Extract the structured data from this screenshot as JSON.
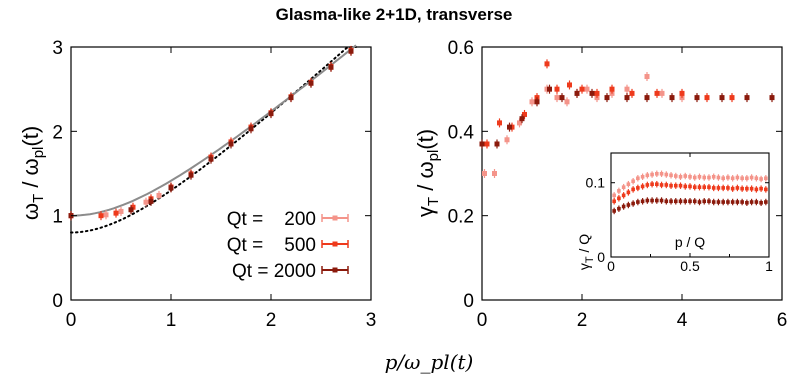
{
  "title": "Glasma-like 2+1D, transverse",
  "shared_xlabel": "p/ω_pl(t)",
  "colors": {
    "qt200": "#f4948a",
    "qt500": "#ee3a1c",
    "qt2000": "#8b1a0c",
    "theory": "#8c8c8c",
    "dotted": "#000000"
  },
  "chart_data": [
    {
      "name": "left",
      "type": "scatter",
      "ylabel_main": "ω",
      "ylabel_sub": "T",
      "ylabel_rest": " / ω",
      "ylabel_sub2": "pl",
      "ylabel_tail": "(t)",
      "xlim": [
        0,
        3
      ],
      "ylim": [
        0,
        3
      ],
      "xticks": [
        "0",
        "1",
        "2",
        "3"
      ],
      "yticks": [
        "0",
        "1",
        "2",
        "3"
      ],
      "legend": {
        "position": "bottom-right",
        "labels": [
          "Qt =    200",
          "Qt =    500",
          "Qt = 2000"
        ]
      },
      "curves": [
        {
          "kind": "solid-gray",
          "desc": "sqrt(1+x^2)"
        },
        {
          "kind": "dotted-black",
          "desc": "0.8 at x=0"
        }
      ],
      "series": [
        {
          "key": "qt200",
          "x": [
            0,
            0.35,
            0.5,
            0.75,
            0.88,
            1.0,
            1.2,
            1.4,
            1.6,
            1.8,
            2.0,
            2.2,
            2.4,
            2.6,
            2.8
          ],
          "y": [
            1.0,
            1.01,
            1.05,
            1.16,
            1.24,
            1.33,
            1.5,
            1.7,
            1.88,
            2.05,
            2.22,
            2.4,
            2.58,
            2.76,
            2.95
          ]
        },
        {
          "key": "qt500",
          "x": [
            0,
            0.3,
            0.45,
            0.62,
            0.8,
            1.0,
            1.2,
            1.4,
            1.6,
            1.8,
            2.0,
            2.2,
            2.4,
            2.6,
            2.8
          ],
          "y": [
            1.0,
            1.0,
            1.03,
            1.1,
            1.2,
            1.34,
            1.49,
            1.69,
            1.87,
            2.05,
            2.22,
            2.41,
            2.58,
            2.77,
            2.96
          ]
        },
        {
          "key": "qt2000",
          "x": [
            0,
            0.6,
            0.8,
            1.0,
            1.2,
            1.4,
            1.6,
            1.8,
            2.0,
            2.2,
            2.4,
            2.6,
            2.8
          ],
          "y": [
            1.0,
            1.07,
            1.17,
            1.33,
            1.48,
            1.67,
            1.85,
            2.03,
            2.21,
            2.4,
            2.57,
            2.76,
            2.95
          ]
        }
      ]
    },
    {
      "name": "right",
      "type": "scatter",
      "ylabel_main": "γ",
      "ylabel_sub": "T",
      "ylabel_rest": " / ω",
      "ylabel_sub2": "pl",
      "ylabel_tail": "(t)",
      "xlim": [
        0,
        6
      ],
      "ylim": [
        0,
        0.6
      ],
      "xticks": [
        "0",
        "2",
        "4",
        "6"
      ],
      "yticks": [
        "0",
        "0.2",
        "0.4",
        "0.6"
      ],
      "series": [
        {
          "key": "qt200",
          "x": [
            0.05,
            0.25,
            0.5,
            0.75,
            1.0,
            1.3,
            1.5,
            1.7,
            1.9,
            2.1,
            2.3,
            2.6,
            2.9,
            3.3,
            3.6,
            4.0
          ],
          "y": [
            0.3,
            0.3,
            0.38,
            0.42,
            0.47,
            0.5,
            0.48,
            0.47,
            0.49,
            0.5,
            0.48,
            0.49,
            0.5,
            0.53,
            0.49,
            0.48
          ]
        },
        {
          "key": "qt500",
          "x": [
            0.1,
            0.35,
            0.6,
            0.85,
            1.1,
            1.3,
            1.5,
            1.75,
            2.0,
            2.3,
            2.6,
            3.0,
            3.5,
            4.0,
            4.5,
            5.0
          ],
          "y": [
            0.37,
            0.42,
            0.41,
            0.44,
            0.48,
            0.56,
            0.5,
            0.51,
            0.5,
            0.49,
            0.5,
            0.49,
            0.49,
            0.49,
            0.48,
            0.48
          ]
        },
        {
          "key": "qt2000",
          "x": [
            0.0,
            0.3,
            0.55,
            0.8,
            1.1,
            1.35,
            1.6,
            1.9,
            2.2,
            2.5,
            2.9,
            3.3,
            3.8,
            4.3,
            4.8,
            5.3,
            5.8
          ],
          "y": [
            0.37,
            0.37,
            0.41,
            0.43,
            0.47,
            0.5,
            0.48,
            0.49,
            0.49,
            0.48,
            0.48,
            0.48,
            0.48,
            0.48,
            0.48,
            0.48,
            0.48
          ]
        }
      ]
    },
    {
      "name": "inset",
      "type": "scatter",
      "ylabel_main": "γ",
      "ylabel_sub": "T",
      "ylabel_rest": " / Q",
      "xlabel": "p / Q",
      "xlim": [
        0,
        1
      ],
      "ylim": [
        0,
        0.14
      ],
      "xticks": [
        "0",
        "0.5",
        "1"
      ],
      "yticks": [
        "0",
        "0.1"
      ],
      "series": [
        {
          "key": "qt200",
          "x": [
            0.02,
            0.05,
            0.08,
            0.11,
            0.14,
            0.17,
            0.2,
            0.23,
            0.26,
            0.29,
            0.32,
            0.35,
            0.38,
            0.41,
            0.44,
            0.47,
            0.5,
            0.53,
            0.56,
            0.59,
            0.62,
            0.65,
            0.68,
            0.71,
            0.74,
            0.77,
            0.8,
            0.83,
            0.86,
            0.89,
            0.92,
            0.95,
            0.98
          ],
          "y": [
            0.083,
            0.089,
            0.094,
            0.098,
            0.102,
            0.106,
            0.108,
            0.11,
            0.111,
            0.112,
            0.112,
            0.111,
            0.11,
            0.109,
            0.108,
            0.109,
            0.108,
            0.107,
            0.108,
            0.107,
            0.107,
            0.108,
            0.107,
            0.106,
            0.107,
            0.106,
            0.107,
            0.106,
            0.106,
            0.107,
            0.106,
            0.105,
            0.106
          ]
        },
        {
          "key": "qt500",
          "x": [
            0.02,
            0.05,
            0.08,
            0.11,
            0.14,
            0.17,
            0.2,
            0.23,
            0.26,
            0.29,
            0.32,
            0.35,
            0.38,
            0.41,
            0.44,
            0.47,
            0.5,
            0.53,
            0.56,
            0.59,
            0.62,
            0.65,
            0.68,
            0.71,
            0.74,
            0.77,
            0.8,
            0.83,
            0.86,
            0.89,
            0.92,
            0.95,
            0.98
          ],
          "y": [
            0.075,
            0.079,
            0.083,
            0.087,
            0.091,
            0.093,
            0.095,
            0.097,
            0.098,
            0.098,
            0.097,
            0.097,
            0.096,
            0.096,
            0.096,
            0.095,
            0.095,
            0.094,
            0.094,
            0.094,
            0.094,
            0.093,
            0.093,
            0.093,
            0.093,
            0.092,
            0.093,
            0.092,
            0.092,
            0.092,
            0.091,
            0.092,
            0.091
          ]
        },
        {
          "key": "qt2000",
          "x": [
            0.02,
            0.05,
            0.08,
            0.11,
            0.14,
            0.17,
            0.2,
            0.23,
            0.26,
            0.29,
            0.32,
            0.35,
            0.38,
            0.41,
            0.44,
            0.47,
            0.5,
            0.53,
            0.56,
            0.59,
            0.62,
            0.65,
            0.68,
            0.71,
            0.74,
            0.77,
            0.8,
            0.83,
            0.86,
            0.89,
            0.92,
            0.95,
            0.98
          ],
          "y": [
            0.062,
            0.065,
            0.068,
            0.07,
            0.072,
            0.074,
            0.075,
            0.076,
            0.076,
            0.076,
            0.076,
            0.075,
            0.075,
            0.075,
            0.075,
            0.075,
            0.075,
            0.075,
            0.074,
            0.075,
            0.075,
            0.074,
            0.074,
            0.074,
            0.074,
            0.074,
            0.074,
            0.074,
            0.073,
            0.074,
            0.074,
            0.073,
            0.074
          ]
        }
      ]
    }
  ]
}
